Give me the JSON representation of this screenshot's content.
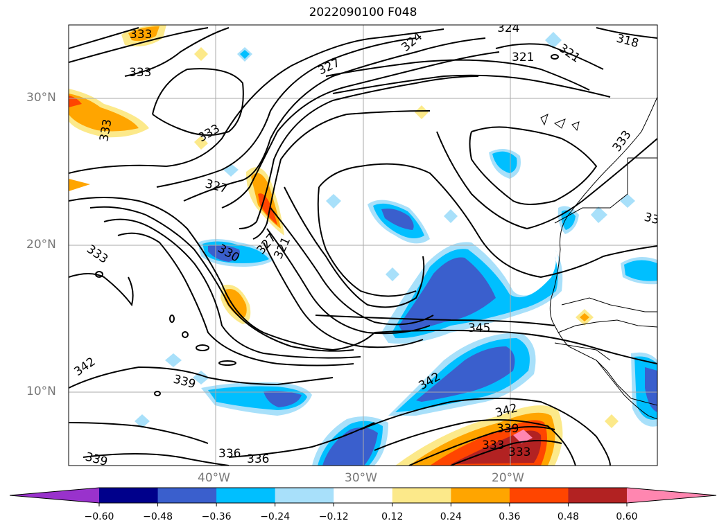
{
  "title": "2022090100 F048",
  "map": {
    "lat_ticks": [
      "30°N",
      "20°N",
      "10°N"
    ],
    "lon_ticks": [
      "40°W",
      "30°W",
      "20°W"
    ],
    "contour_labels": [
      "333",
      "333",
      "333",
      "333",
      "333",
      "327",
      "327",
      "330",
      "327",
      "321",
      "324",
      "324",
      "321",
      "321",
      "318",
      "333",
      "33",
      "345",
      "342",
      "342",
      "342",
      "339",
      "339",
      "339",
      "336",
      "336",
      "333"
    ]
  },
  "colorbar": {
    "colors": [
      "#9932cc",
      "#00008b",
      "#3a5fcd",
      "#00bfff",
      "#a8e0fa",
      "#ffffff",
      "#fce98a",
      "#ffa500",
      "#ff4500",
      "#b22222",
      "#ff86b0"
    ],
    "tick_labels": [
      "−0.60",
      "−0.48",
      "−0.36",
      "−0.24",
      "−0.12",
      "0.12",
      "0.24",
      "0.36",
      "0.48",
      "0.60"
    ]
  }
}
